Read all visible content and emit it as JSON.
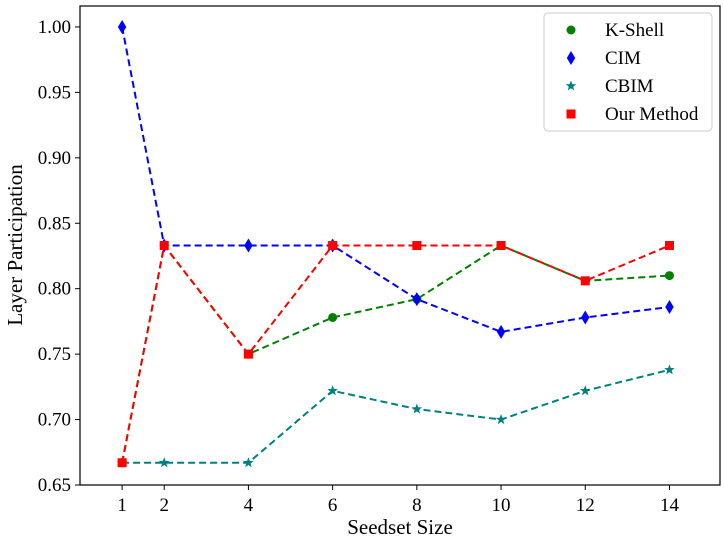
{
  "chart_data": {
    "type": "line",
    "xlabel": "Seedset Size",
    "ylabel": "Layer Participation",
    "x": [
      1,
      2,
      4,
      6,
      8,
      10,
      12,
      14
    ],
    "xticks": [
      1,
      2,
      4,
      6,
      8,
      10,
      12,
      14
    ],
    "xtick_labels": [
      "1",
      "2",
      "4",
      "6",
      "8",
      "10",
      "12",
      "14"
    ],
    "yticks": [
      0.65,
      0.7,
      0.75,
      0.8,
      0.85,
      0.9,
      0.95,
      1.0
    ],
    "ytick_labels": [
      "0.65",
      "0.70",
      "0.75",
      "0.80",
      "0.85",
      "0.90",
      "0.95",
      "1.00"
    ],
    "xlim": [
      0,
      15.2
    ],
    "ylim": [
      0.65,
      1.016
    ],
    "grid": false,
    "legend_position": "top-right",
    "line_style": "dashed",
    "series": [
      {
        "name": "K-Shell",
        "color": "#008000",
        "marker": "circle",
        "values": [
          0.667,
          0.833,
          0.75,
          0.778,
          0.792,
          0.833,
          0.806,
          0.81
        ]
      },
      {
        "name": "CIM",
        "color": "#0000ff",
        "marker": "diamond",
        "values": [
          1.0,
          0.833,
          0.833,
          0.833,
          0.792,
          0.767,
          0.778,
          0.786
        ]
      },
      {
        "name": "CBIM",
        "color": "#008080",
        "marker": "star",
        "values": [
          0.667,
          0.667,
          0.667,
          0.722,
          0.708,
          0.7,
          0.722,
          0.738
        ]
      },
      {
        "name": "Our Method",
        "color": "#ff0000",
        "marker": "square",
        "values": [
          0.667,
          0.833,
          0.75,
          0.833,
          0.833,
          0.833,
          0.806,
          0.833
        ]
      }
    ]
  }
}
